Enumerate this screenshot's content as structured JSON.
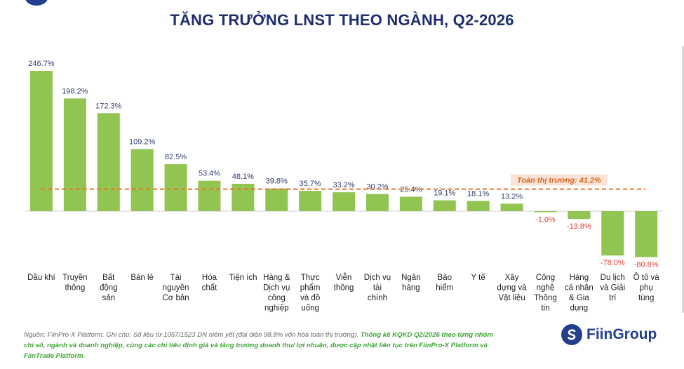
{
  "title": "TĂNG TRƯỞNG LNST THEO NGÀNH, Q2-2026",
  "colors": {
    "bar": "#92c452",
    "positive_label": "#34406e",
    "negative_label": "#e53b2f",
    "reference_line": "#e8742a",
    "title": "#1f2f6e",
    "brand": "#23408e"
  },
  "chart_data": {
    "type": "bar",
    "categories": [
      [
        "Dầu khí"
      ],
      [
        "Truyền",
        "thông"
      ],
      [
        "Bất",
        "động",
        "sản"
      ],
      [
        "Bán lẻ"
      ],
      [
        "Tài",
        "nguyên",
        "Cơ bản"
      ],
      [
        "Hóa",
        "chất"
      ],
      [
        "Tiện ích"
      ],
      [
        "Hàng &",
        "Dịch vụ",
        "công",
        "nghiệp"
      ],
      [
        "Thực",
        "phẩm",
        "và đồ",
        "uống"
      ],
      [
        "Viễn",
        "thông"
      ],
      [
        "Dịch vụ",
        "tài",
        "chính"
      ],
      [
        "Ngân",
        "hàng"
      ],
      [
        "Bảo",
        "hiểm"
      ],
      [
        "Y tế"
      ],
      [
        "Xây",
        "dựng và",
        "Vật liệu"
      ],
      [
        "Công",
        "nghệ",
        "Thông",
        "tin"
      ],
      [
        "Hàng",
        "cá nhân",
        "& Gia",
        "dụng"
      ],
      [
        "Du lịch",
        "và Giải",
        "trí"
      ],
      [
        "Ô tô và",
        "phụ",
        "tùng"
      ]
    ],
    "values": [
      246.7,
      198.2,
      172.3,
      109.2,
      82.5,
      53.4,
      48.1,
      39.8,
      35.7,
      33.2,
      30.2,
      25.4,
      19.1,
      18.1,
      13.2,
      -1.0,
      -13.8,
      -78.0,
      -80.8
    ],
    "value_labels": [
      "246.7%",
      "198.2%",
      "172.3%",
      "109.2%",
      "82.5%",
      "53.4%",
      "48.1%",
      "39.8%",
      "35.7%",
      "33.2%",
      "30.2%",
      "25.4%",
      "19.1%",
      "18.1%",
      "13.2%",
      "-1.0%",
      "-13.8%",
      "-78.0%",
      "-80.8%"
    ],
    "reference_line": {
      "value": 41.2,
      "label": "Toàn thị trường: 41.2%"
    },
    "ylim": [
      -85,
      250
    ],
    "grid": false,
    "legend": "none"
  },
  "footnote": {
    "plain": "Nguồn: FiinPro-X Platform. Ghi chú: Số liệu từ 1057/1523 DN niêm yết (đại diện 98,8% vốn hóa toàn thị trường). ",
    "highlight": "Thống kê KQKD Q2/2026 theo từng nhóm chỉ số, ngành và doanh nghiệp, cùng các chỉ tiêu định giá và tăng trưởng doanh thu/ lợi nhuận, được cập nhật liên tục trên FiinPro-X Platform và FiinTrade Platform."
  },
  "brand": {
    "name": "FiinGroup",
    "icon": "fiingroup-logo-icon"
  }
}
